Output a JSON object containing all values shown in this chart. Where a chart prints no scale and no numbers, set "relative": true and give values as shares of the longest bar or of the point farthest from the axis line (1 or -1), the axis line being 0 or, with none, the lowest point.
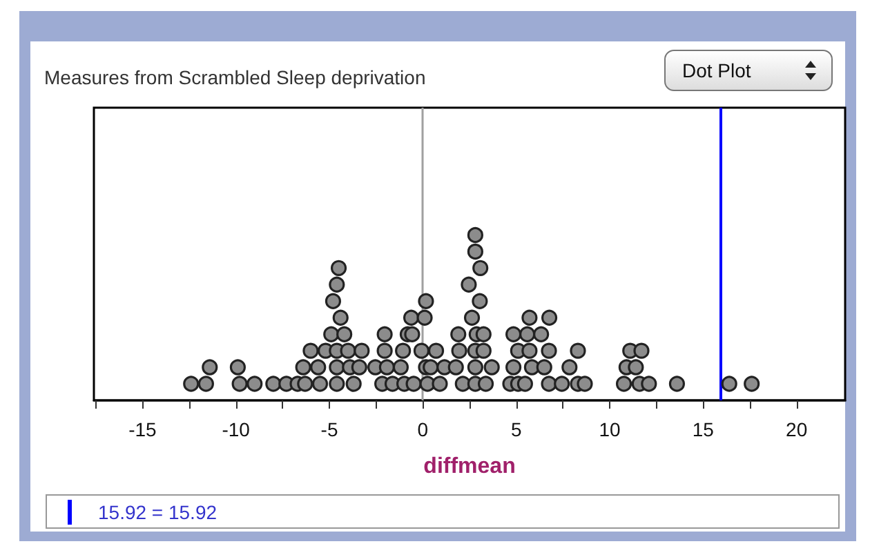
{
  "chart_data": {
    "type": "scatter",
    "title": "Measures from Scrambled Sleep deprivation",
    "xlabel": "diffmean",
    "annotations": [
      "Dot Plot",
      "15.92 = 15.92"
    ],
    "x": [
      -12.4,
      -11.6,
      -9.8,
      -9.0,
      -8.0,
      -7.3,
      -6.7,
      -6.3,
      -5.5,
      -4.6,
      -3.7,
      -2.17,
      -1.62,
      -0.99,
      -0.49,
      0.25,
      0.91,
      2.14,
      2.81,
      3.37,
      4.68,
      5.1,
      5.47,
      6.75,
      7.44,
      8.3,
      8.67,
      10.76,
      11.6,
      12.1,
      13.6,
      16.4,
      17.6,
      -11.4,
      -9.9,
      -6.4,
      -5.6,
      -4.6,
      -3.9,
      -3.4,
      -2.54,
      -1.92,
      -1.18,
      0.17,
      0.42,
      1.16,
      1.77,
      2.81,
      3.69,
      4.85,
      5.84,
      6.5,
      7.85,
      10.9,
      11.4,
      -6.0,
      -5.2,
      -4.6,
      -4.0,
      -3.27,
      -2.04,
      -1.06,
      -0.07,
      0.71,
      1.95,
      2.81,
      3.25,
      5.1,
      5.71,
      6.75,
      8.3,
      11.1,
      11.7,
      -4.9,
      -4.2,
      -2.04,
      -0.81,
      -0.57,
      1.9,
      2.88,
      3.25,
      4.85,
      5.59,
      6.33,
      -4.4,
      -0.62,
      0.1,
      2.63,
      5.71,
      6.77,
      -4.8,
      0.17,
      3.05,
      -4.6,
      2.46,
      -4.5,
      3.08,
      2.81,
      2.81
    ],
    "values": [
      0.1,
      0.1,
      0.1,
      0.1,
      0.1,
      0.1,
      0.1,
      0.1,
      0.1,
      0.1,
      0.1,
      0.1,
      0.1,
      0.1,
      0.1,
      0.1,
      0.1,
      0.1,
      0.1,
      0.1,
      0.1,
      0.1,
      0.1,
      0.1,
      0.1,
      0.1,
      0.1,
      0.1,
      0.1,
      0.1,
      0.1,
      0.1,
      0.1,
      0.2,
      0.2,
      0.2,
      0.2,
      0.2,
      0.2,
      0.2,
      0.2,
      0.2,
      0.2,
      0.2,
      0.2,
      0.2,
      0.2,
      0.2,
      0.2,
      0.2,
      0.2,
      0.2,
      0.2,
      0.2,
      0.2,
      0.3,
      0.3,
      0.3,
      0.3,
      0.3,
      0.3,
      0.3,
      0.3,
      0.3,
      0.3,
      0.3,
      0.3,
      0.3,
      0.3,
      0.3,
      0.3,
      0.3,
      0.3,
      0.4,
      0.4,
      0.4,
      0.4,
      0.4,
      0.4,
      0.4,
      0.4,
      0.4,
      0.4,
      0.4,
      0.5,
      0.5,
      0.5,
      0.5,
      0.5,
      0.5,
      0.6,
      0.6,
      0.6,
      0.7,
      0.7,
      0.8,
      0.8,
      0.9,
      1
    ],
    "relative": true,
    "color": "#8c8c8c",
    "marker": "circle",
    "xlim": [
      -17.6,
      22.6
    ],
    "xticks": [
      {
        "value": -17.5,
        "label": null
      },
      -15,
      {
        "value": -12.5,
        "label": null
      },
      -10,
      {
        "value": -7.5,
        "label": null
      },
      -5,
      {
        "value": -2.5,
        "label": null
      },
      0,
      {
        "value": 2.5,
        "label": null
      },
      5,
      {
        "value": 7.5,
        "label": null
      },
      10,
      {
        "value": 12.5,
        "label": null
      },
      15,
      {
        "value": 17.5,
        "label": null
      },
      20
    ],
    "tick_labels": "x",
    "grid": false,
    "ref_lines": [
      {
        "axis": "x",
        "value": 0,
        "color": "#a0a0a0"
      },
      {
        "axis": "x",
        "value": 15.92,
        "color": "#0000ff"
      }
    ]
  }
}
